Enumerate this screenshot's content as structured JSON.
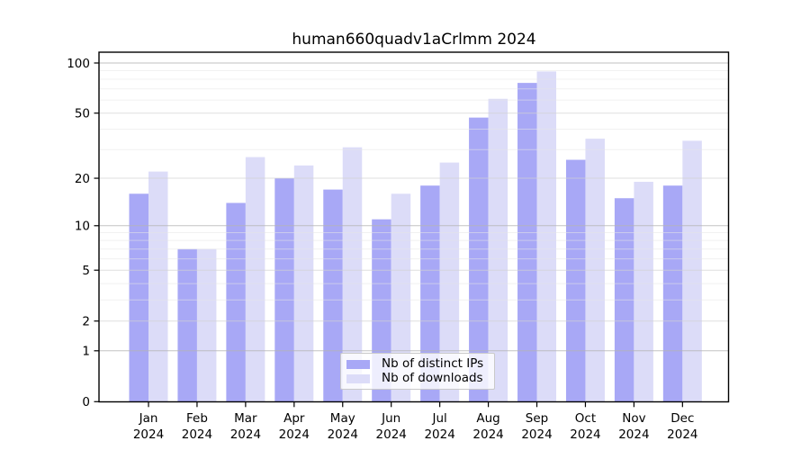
{
  "chart_data": {
    "type": "bar",
    "title": "human660quadv1aCrlmm 2024",
    "categories": [
      "Jan",
      "Feb",
      "Mar",
      "Apr",
      "May",
      "Jun",
      "Jul",
      "Aug",
      "Sep",
      "Oct",
      "Nov",
      "Dec"
    ],
    "year_label": "2024",
    "series": [
      {
        "name": "Nb of distinct IPs",
        "color": "#a8a8f6",
        "values": [
          16,
          7,
          14,
          20,
          17,
          11,
          18,
          47,
          76,
          26,
          15,
          18
        ]
      },
      {
        "name": "Nb of downloads",
        "color": "#dcdcf8",
        "values": [
          22,
          7,
          27,
          24,
          31,
          16,
          25,
          61,
          89,
          35,
          19,
          34
        ]
      }
    ],
    "yticks": [
      0,
      1,
      2,
      5,
      10,
      20,
      50,
      100
    ],
    "yscale": "log1p",
    "ylim": [
      0,
      116
    ],
    "xlabel": "",
    "ylabel": "",
    "grid": "on",
    "legend_position": "bottom-center",
    "colors": {
      "grid_major": "#b3b3b3",
      "grid_mid": "#d2d2d2",
      "grid_minor": "#e6e6e6",
      "axis": "#000000"
    }
  }
}
